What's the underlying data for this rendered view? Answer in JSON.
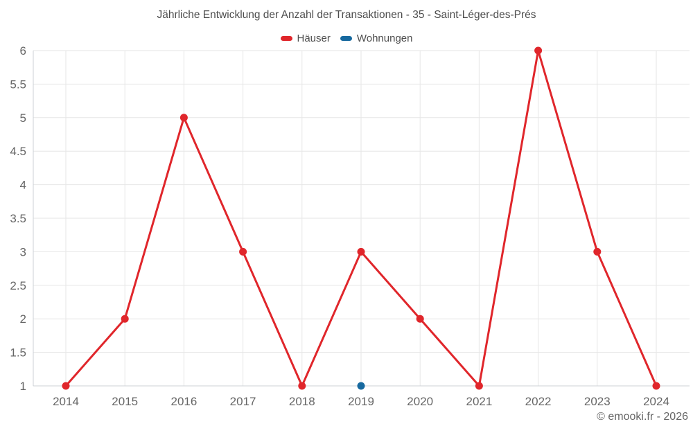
{
  "title": "Jährliche Entwicklung der Anzahl der Transaktionen - 35 - Saint-Léger-des-Prés",
  "legend": {
    "items": [
      {
        "label": "Häuser",
        "color": "#e0262b"
      },
      {
        "label": "Wohnungen",
        "color": "#17699f"
      }
    ]
  },
  "footer": {
    "copyright": "© emooki.fr - 2026"
  },
  "colors": {
    "grid": "#e6e6e6",
    "axis": "#ccd1d6",
    "tick_label": "#666666",
    "title_text": "#4d4d4d"
  },
  "chart_data": {
    "type": "line",
    "title": "Jährliche Entwicklung der Anzahl der Transaktionen - 35 - Saint-Léger-des-Prés",
    "categories": [
      "2014",
      "2015",
      "2016",
      "2017",
      "2018",
      "2019",
      "2020",
      "2021",
      "2022",
      "2023",
      "2024"
    ],
    "series": [
      {
        "name": "Häuser",
        "color": "#e0262b",
        "mode": "line+markers",
        "values": [
          1,
          2,
          5,
          3,
          1,
          3,
          2,
          1,
          6,
          3,
          1
        ]
      },
      {
        "name": "Wohnungen",
        "color": "#17699f",
        "mode": "markers",
        "values": [
          null,
          null,
          null,
          null,
          null,
          1,
          null,
          null,
          null,
          null,
          null
        ]
      }
    ],
    "xlabel": "",
    "ylabel": "",
    "ylim": [
      1,
      6
    ],
    "ytick_step": 0.5,
    "grid": true,
    "legend_position": "top"
  }
}
